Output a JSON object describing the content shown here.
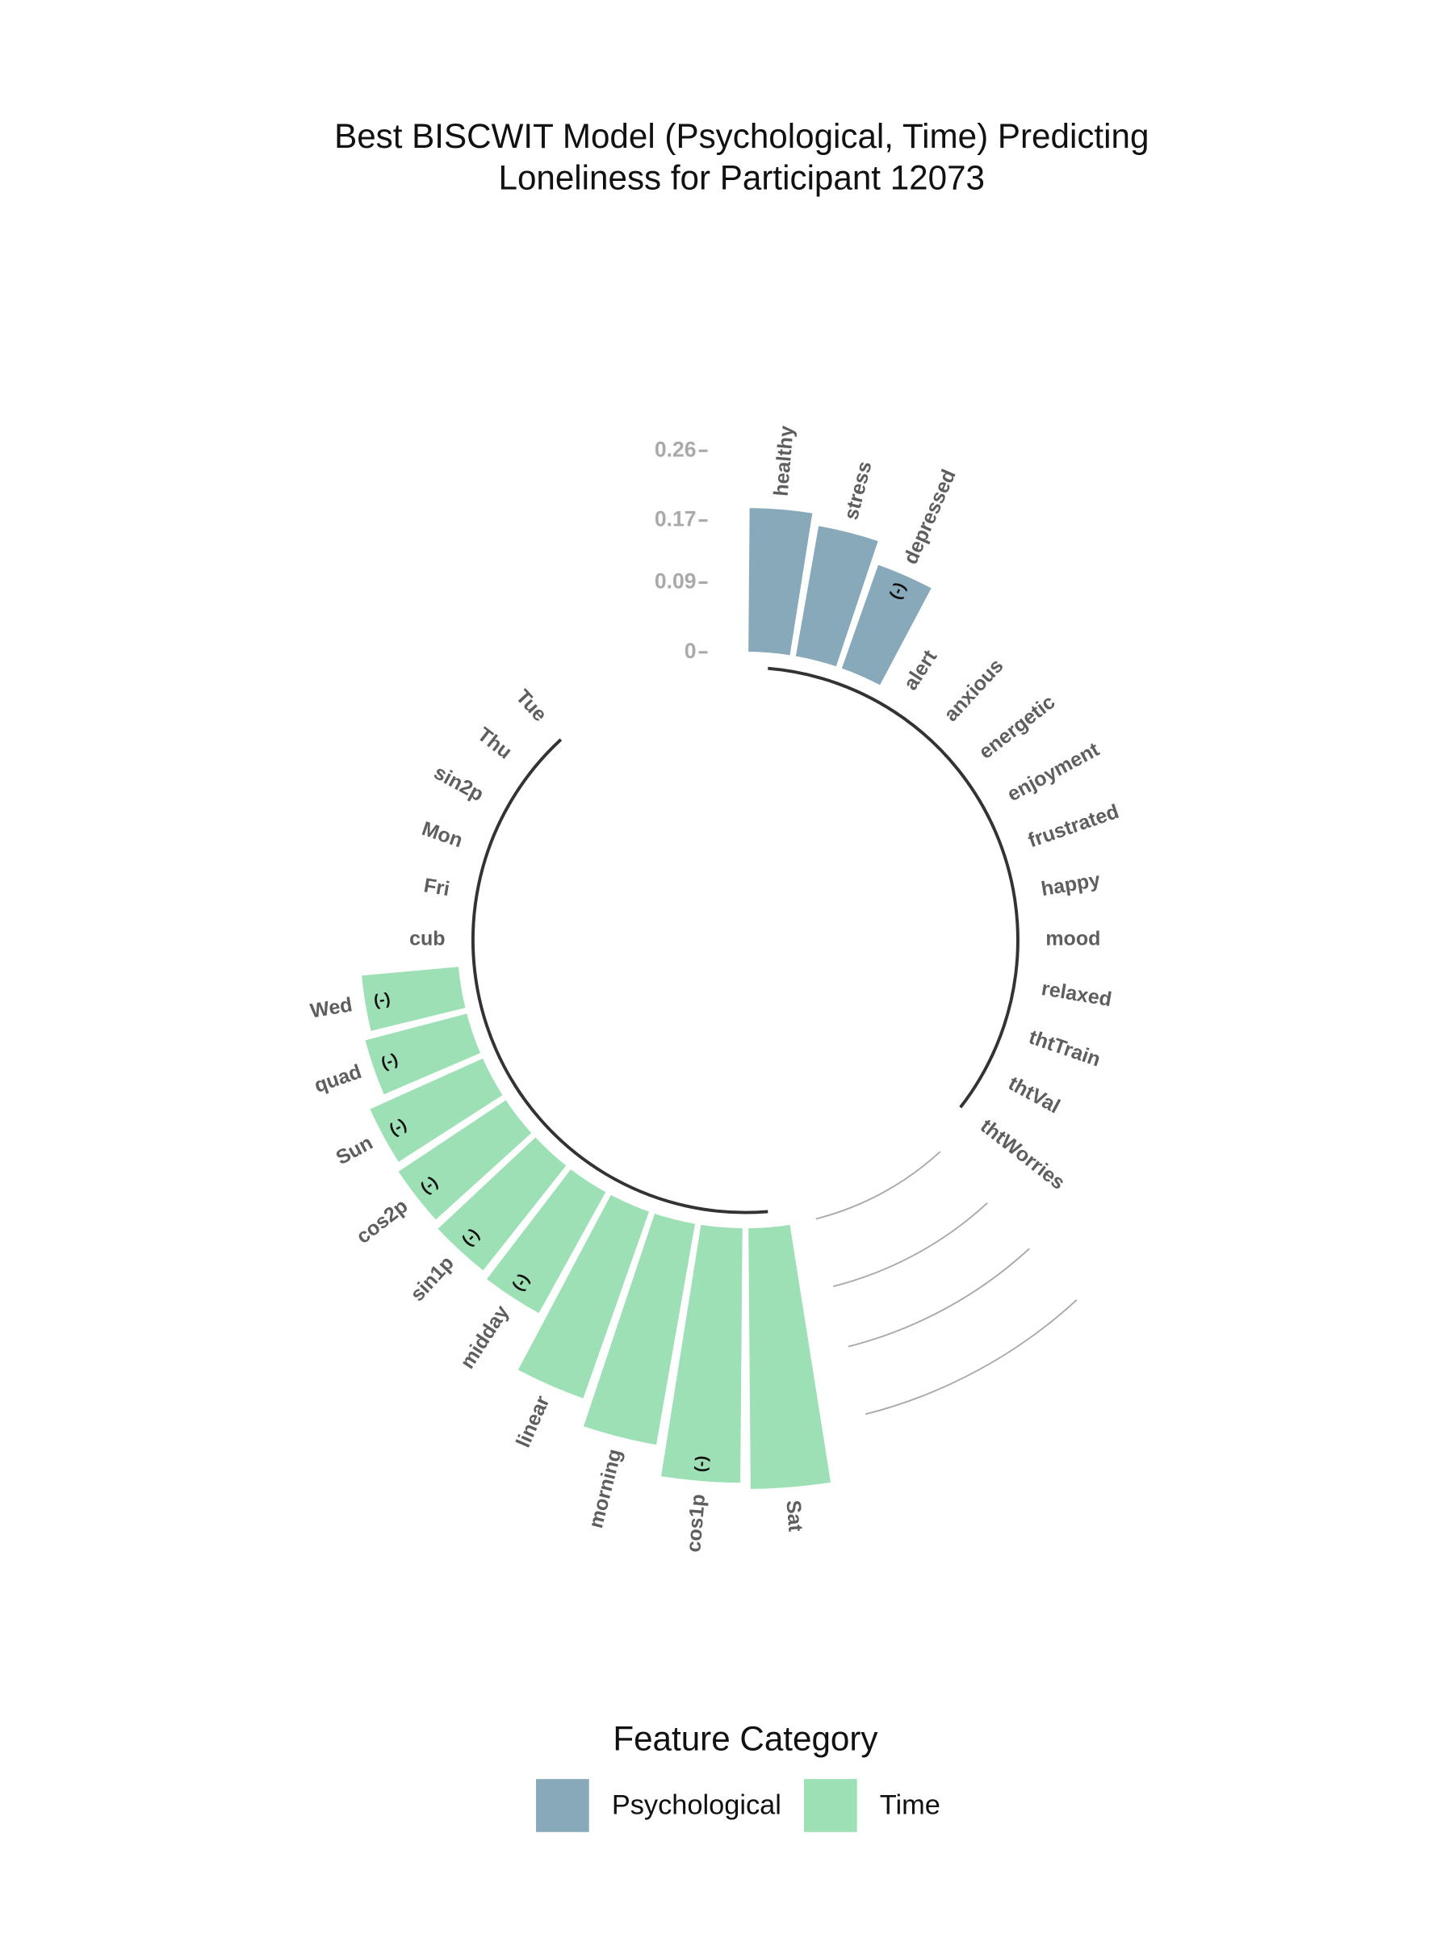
{
  "chart_data": {
    "type": "bar",
    "polar": true,
    "title": [
      "Best BISCWIT Model (Psychological, Time) Predicting",
      "Loneliness for Participant 12073"
    ],
    "ylim": [
      0,
      0.35
    ],
    "yticks": [
      0,
      0.09,
      0.17,
      0.26
    ],
    "legend_title": "Feature Category",
    "groups": [
      {
        "name": "Psychological",
        "color": "#87a9b9",
        "categories": [
          "healthy",
          "stress",
          "depressed",
          "alert",
          "anxious",
          "energetic",
          "enjoyment",
          "frustrated",
          "happy",
          "mood",
          "relaxed",
          "thtTrain",
          "thtVal",
          "thtWorries"
        ],
        "values": [
          0.187,
          0.172,
          0.143,
          0,
          0,
          0,
          0,
          0,
          0,
          0,
          0,
          0,
          0,
          0
        ],
        "sign_labels": [
          null,
          null,
          "(-)",
          null,
          null,
          null,
          null,
          null,
          null,
          null,
          null,
          null,
          null,
          null
        ]
      },
      {
        "name": "Time",
        "color": "#9de0b5",
        "categories": [
          "Sat",
          "cos1p",
          "morning",
          "linear",
          "midday",
          "sin1p",
          "cos2p",
          "Sun",
          "quad",
          "Wed",
          "cub",
          "Fri",
          "Mon",
          "sin2p",
          "Thu",
          "Tue"
        ],
        "values": [
          0.338,
          0.33,
          0.291,
          0.257,
          0.18,
          0.174,
          0.168,
          0.161,
          0.137,
          0.127,
          0,
          0,
          0,
          0,
          0,
          0
        ],
        "sign_labels": [
          null,
          "(-)",
          null,
          null,
          "(-)",
          "(-)",
          "(-)",
          "(-)",
          "(-)",
          "(-)",
          null,
          null,
          null,
          null,
          null,
          null
        ]
      }
    ]
  }
}
